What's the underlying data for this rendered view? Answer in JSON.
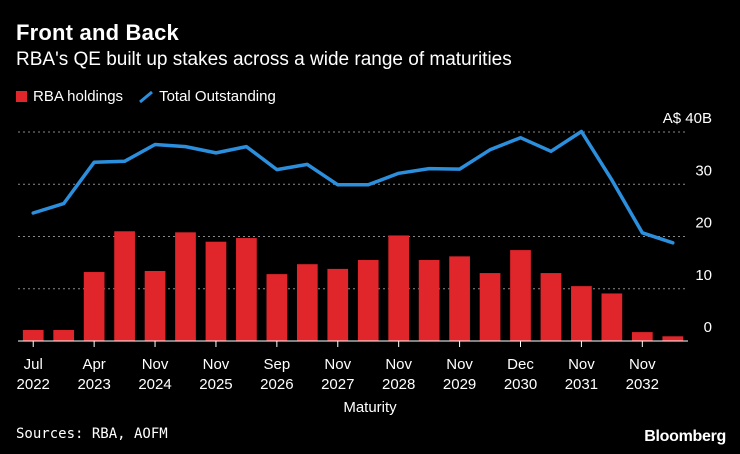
{
  "title": "Front and Back",
  "subtitle": "RBA's QE built up stakes across a wide range of maturities",
  "source": "Sources: RBA, AOFM",
  "brand": "Bloomberg",
  "colors": {
    "bar": "#e0262b",
    "line": "#2b8fdd",
    "grid": "#8a8a8a",
    "axis": "#ffffff"
  },
  "chart_data": {
    "type": "bar",
    "xlabel": "Maturity",
    "ylabel": "",
    "ylim": [
      0,
      40
    ],
    "y_ticks": [
      "0",
      "10",
      "20",
      "30",
      "A$ 40B"
    ],
    "y_tick_values": [
      0,
      10,
      20,
      30,
      40
    ],
    "x_tick_labels": [
      {
        "index": 0,
        "line1": "Jul",
        "line2": "2022"
      },
      {
        "index": 2,
        "line1": "Apr",
        "line2": "2023"
      },
      {
        "index": 4,
        "line1": "Nov",
        "line2": "2024"
      },
      {
        "index": 6,
        "line1": "Nov",
        "line2": "2025"
      },
      {
        "index": 8,
        "line1": "Sep",
        "line2": "2026"
      },
      {
        "index": 10,
        "line1": "Nov",
        "line2": "2027"
      },
      {
        "index": 12,
        "line1": "Nov",
        "line2": "2028"
      },
      {
        "index": 14,
        "line1": "Nov",
        "line2": "2029"
      },
      {
        "index": 16,
        "line1": "Dec",
        "line2": "2030"
      },
      {
        "index": 18,
        "line1": "Nov",
        "line2": "2031"
      },
      {
        "index": 20,
        "line1": "Nov",
        "line2": "2032"
      }
    ],
    "grid": true,
    "legend": "top-left",
    "series": [
      {
        "name": "RBA holdings",
        "type": "bar",
        "values": [
          2.1,
          2.1,
          13.2,
          21,
          13.4,
          20.8,
          19,
          19.7,
          12.8,
          14.7,
          13.8,
          15.5,
          20.2,
          15.5,
          16.2,
          13,
          17.4,
          13,
          10.5,
          9.1,
          1.7,
          0.9
        ]
      },
      {
        "name": "Total Outstanding",
        "type": "line",
        "values": [
          24.5,
          26.3,
          34.2,
          34.4,
          37.6,
          37.2,
          36,
          37.2,
          32.8,
          33.8,
          29.9,
          29.9,
          32.1,
          33,
          32.9,
          36.6,
          38.9,
          36.3,
          40.1,
          30.8,
          20.7,
          18.8
        ]
      }
    ]
  }
}
